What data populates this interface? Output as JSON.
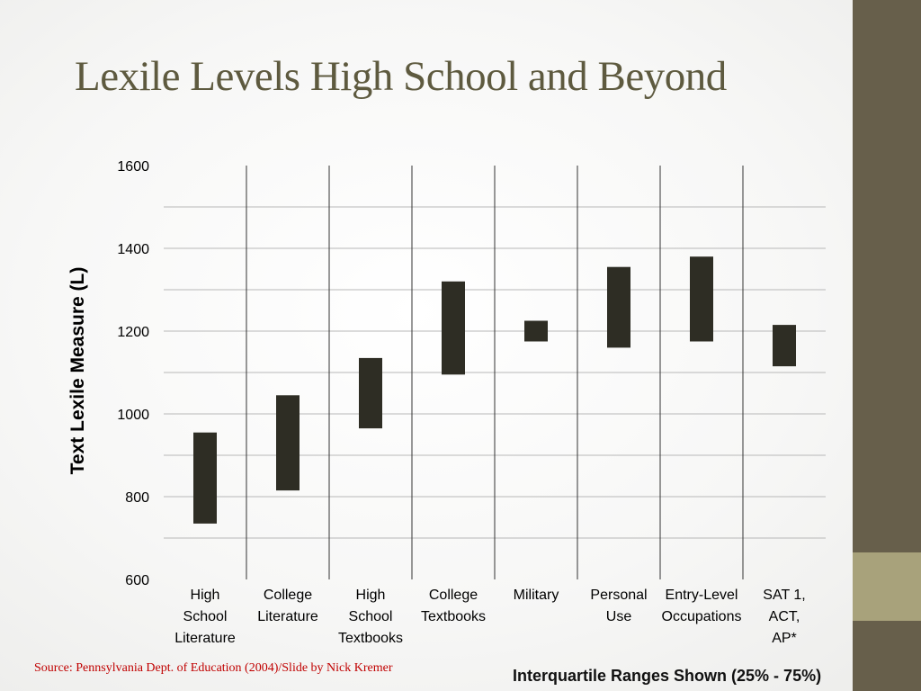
{
  "slide": {
    "title": "Lexile Levels High School and Beyond",
    "source": "Source: Pennsylvania Dept. of Education (2004)/Slide by Nick Kremer",
    "note": "Interquartile Ranges Shown (25% - 75%)",
    "colors": {
      "bar": "#2e2d24",
      "title": "#5e5a3f",
      "sidebar": "#675f4b",
      "sidebar_accent": "#a8a27b",
      "source": "#c00000"
    }
  },
  "chart_data": {
    "type": "bar",
    "title": "",
    "xlabel": "",
    "ylabel": "Text Lexile Measure (L)",
    "ylim": [
      600,
      1600
    ],
    "yticks": [
      "600",
      "800",
      "1000",
      "1200",
      "1400",
      "1600"
    ],
    "grid": true,
    "categories": [
      [
        "High",
        "School",
        "Literature"
      ],
      [
        "College",
        "Literature"
      ],
      [
        "High",
        "School",
        "Textbooks"
      ],
      [
        "College",
        "Textbooks"
      ],
      [
        "Military"
      ],
      [
        "Personal",
        "Use"
      ],
      [
        "Entry-Level",
        "Occupations"
      ],
      [
        "SAT 1,",
        "ACT,",
        "AP*"
      ]
    ],
    "ranges": [
      [
        735,
        955
      ],
      [
        815,
        1045
      ],
      [
        965,
        1135
      ],
      [
        1095,
        1320
      ],
      [
        1175,
        1225
      ],
      [
        1160,
        1355
      ],
      [
        1175,
        1380
      ],
      [
        1115,
        1215
      ]
    ]
  }
}
